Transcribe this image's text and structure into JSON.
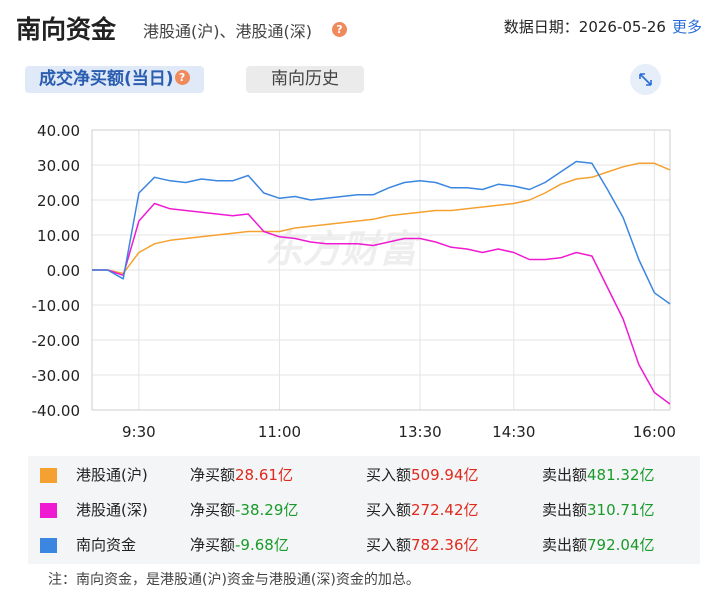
{
  "header": {
    "title": "南向资金",
    "subtitle": "港股通(沪)、港股通(深)",
    "date": "数据日期：2026-05-26",
    "more": "更多"
  },
  "tabs": [
    "成交净买额(当日)",
    "南向历史"
  ],
  "chart_data": {
    "type": "line",
    "watermark": "东方财富",
    "categories": [
      null,
      null,
      null,
      "9:30",
      null,
      null,
      null,
      null,
      null,
      null,
      null,
      null,
      "11:00",
      null,
      null,
      null,
      null,
      null,
      null,
      null,
      null,
      "13:30",
      null,
      null,
      null,
      null,
      null,
      "14:30",
      null,
      null,
      null,
      null,
      null,
      null,
      null,
      null,
      "16:00",
      null
    ],
    "ylim": [
      -40,
      40
    ],
    "yticks": [
      {
        "value": -40,
        "label": "-40.00"
      },
      {
        "value": -30,
        "label": "-30.00"
      },
      {
        "value": -20,
        "label": "-20.00"
      },
      {
        "value": -10,
        "label": "-10.00"
      },
      {
        "value": 0,
        "label": "0.00"
      },
      {
        "value": 10,
        "label": "10.00"
      },
      {
        "value": 20,
        "label": "20.00"
      },
      {
        "value": 30,
        "label": "30.00"
      },
      {
        "value": 40,
        "label": "40.00"
      }
    ],
    "grid": true,
    "series": [
      {
        "name": "港股通(沪)",
        "color": "#f5a131",
        "values": [
          0,
          0,
          -1,
          5,
          7.5,
          8.5,
          9,
          9.5,
          10,
          10.5,
          11,
          11,
          11,
          12,
          12.5,
          13,
          13.5,
          14,
          14.5,
          15.5,
          16,
          16.5,
          17,
          17,
          17.5,
          18,
          18.5,
          19,
          20,
          22,
          24.5,
          26,
          26.5,
          28,
          29.5,
          30.5,
          30.5,
          28.61
        ]
      },
      {
        "name": "港股通(深)",
        "color": "#ee1bd2",
        "values": [
          0,
          0,
          -1.5,
          14,
          19,
          17.5,
          17,
          16.5,
          16,
          15.5,
          16,
          11,
          9.5,
          9,
          8,
          7.5,
          7.5,
          7.5,
          7,
          8,
          9,
          9,
          8,
          6.5,
          6,
          5,
          6,
          5,
          3,
          3,
          3.5,
          5,
          4,
          -5,
          -14,
          -27,
          -35,
          -38.29
        ]
      },
      {
        "name": "南向资金",
        "color": "#3a86e0",
        "values": [
          0,
          0,
          -2.5,
          22,
          26.5,
          25.5,
          25,
          26,
          25.5,
          25.5,
          27,
          22,
          20.5,
          21,
          20,
          20.5,
          21,
          21.5,
          21.5,
          23.5,
          25,
          25.5,
          25,
          23.5,
          23.5,
          23,
          24.5,
          24,
          23,
          25,
          28,
          31,
          30.5,
          23,
          15,
          3,
          -6.5,
          -9.68
        ]
      }
    ]
  },
  "legend_rows": [
    {
      "net_label": "净买额",
      "net": "28.61亿",
      "buy_label": "买入额",
      "buy": "509.94亿",
      "sell_label": "卖出额",
      "sell": "481.32亿"
    },
    {
      "net_label": "净买额",
      "net": "-38.29亿",
      "buy_label": "买入额",
      "buy": "272.42亿",
      "sell_label": "卖出额",
      "sell": "310.71亿"
    },
    {
      "net_label": "净买额",
      "net": "-9.68亿",
      "buy_label": "买入额",
      "buy": "782.36亿",
      "sell_label": "卖出额",
      "sell": "792.04亿"
    }
  ],
  "note": "注：南向资金，是港股通(沪)资金与港股通(深)资金的加总。"
}
